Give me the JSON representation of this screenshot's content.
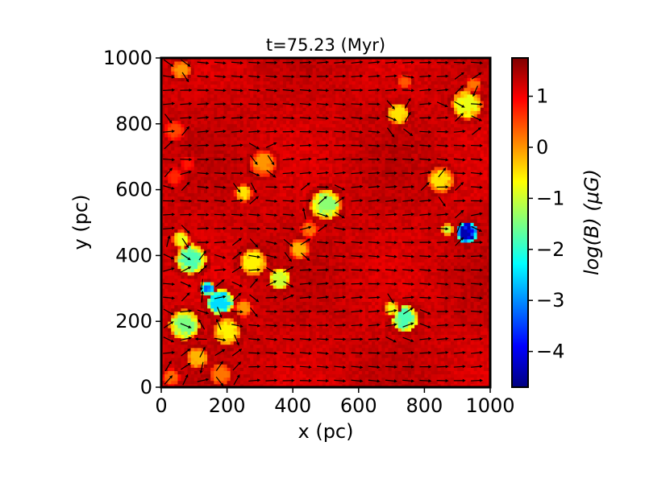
{
  "chart_data": {
    "type": "heatmap",
    "title": "t=75.23 (Myr)",
    "xlabel": "x (pc)",
    "ylabel": "y (pc)",
    "xlim": [
      0,
      1000
    ],
    "ylim": [
      0,
      1000
    ],
    "xticks": [
      {
        "value": 0,
        "label": "0"
      },
      {
        "value": 200,
        "label": "200"
      },
      {
        "value": 400,
        "label": "400"
      },
      {
        "value": 600,
        "label": "600"
      },
      {
        "value": 800,
        "label": "800"
      },
      {
        "value": 1000,
        "label": "1000"
      }
    ],
    "yticks": [
      {
        "value": 0,
        "label": "0"
      },
      {
        "value": 200,
        "label": "200"
      },
      {
        "value": 400,
        "label": "400"
      },
      {
        "value": 600,
        "label": "600"
      },
      {
        "value": 800,
        "label": "800"
      },
      {
        "value": 1000,
        "label": "1000"
      }
    ],
    "colorbar": {
      "label": "log(B) (μG)",
      "range": [
        -4.7,
        1.75
      ],
      "colormap": [
        "#00007f",
        "#0000ff",
        "#007fff",
        "#00ffff",
        "#7fff7f",
        "#ffff00",
        "#ff7f00",
        "#ff0000",
        "#7f0000"
      ],
      "ticks": [
        {
          "value": 1,
          "label": "1"
        },
        {
          "value": 0,
          "label": "0"
        },
        {
          "value": -1,
          "label": "−1"
        },
        {
          "value": -2,
          "label": "−2"
        },
        {
          "value": -3,
          "label": "−3"
        },
        {
          "value": -4,
          "label": "−4"
        }
      ]
    },
    "field": {
      "background": 1.25,
      "features": [
        {
          "x": 60,
          "y": 965,
          "r": 35,
          "min": 0.0
        },
        {
          "x": 40,
          "y": 780,
          "r": 35,
          "min": 0.5
        },
        {
          "x": 40,
          "y": 640,
          "r": 30,
          "min": 0.7
        },
        {
          "x": 80,
          "y": 680,
          "r": 25,
          "min": 0.8
        },
        {
          "x": 310,
          "y": 680,
          "r": 45,
          "min": 0.0
        },
        {
          "x": 250,
          "y": 590,
          "r": 30,
          "min": -0.5
        },
        {
          "x": 500,
          "y": 555,
          "r": 55,
          "min": -1.4
        },
        {
          "x": 450,
          "y": 480,
          "r": 30,
          "min": 0.2
        },
        {
          "x": 420,
          "y": 420,
          "r": 35,
          "min": -0.2
        },
        {
          "x": 90,
          "y": 390,
          "r": 55,
          "min": -1.8
        },
        {
          "x": 60,
          "y": 450,
          "r": 30,
          "min": -0.8
        },
        {
          "x": 280,
          "y": 380,
          "r": 50,
          "min": -0.6
        },
        {
          "x": 360,
          "y": 330,
          "r": 40,
          "min": -1.0
        },
        {
          "x": 180,
          "y": 260,
          "r": 50,
          "min": -2.5
        },
        {
          "x": 140,
          "y": 300,
          "r": 25,
          "min": -3.2
        },
        {
          "x": 70,
          "y": 190,
          "r": 55,
          "min": -1.5
        },
        {
          "x": 200,
          "y": 170,
          "r": 50,
          "min": -0.6
        },
        {
          "x": 110,
          "y": 90,
          "r": 40,
          "min": -0.2
        },
        {
          "x": 180,
          "y": 40,
          "r": 40,
          "min": 0.2
        },
        {
          "x": 30,
          "y": 30,
          "r": 30,
          "min": 0.3
        },
        {
          "x": 250,
          "y": 240,
          "r": 30,
          "min": 0.0
        },
        {
          "x": 740,
          "y": 210,
          "r": 50,
          "min": -1.8
        },
        {
          "x": 700,
          "y": 240,
          "r": 25,
          "min": -0.8
        },
        {
          "x": 720,
          "y": 830,
          "r": 40,
          "min": -0.5
        },
        {
          "x": 740,
          "y": 930,
          "r": 25,
          "min": 0.4
        },
        {
          "x": 930,
          "y": 860,
          "r": 55,
          "min": -0.8
        },
        {
          "x": 950,
          "y": 920,
          "r": 25,
          "min": 0.2
        },
        {
          "x": 850,
          "y": 630,
          "r": 45,
          "min": -0.5
        },
        {
          "x": 930,
          "y": 470,
          "r": 40,
          "min": -4.4
        },
        {
          "x": 870,
          "y": 480,
          "r": 20,
          "min": -1.0
        }
      ]
    }
  }
}
